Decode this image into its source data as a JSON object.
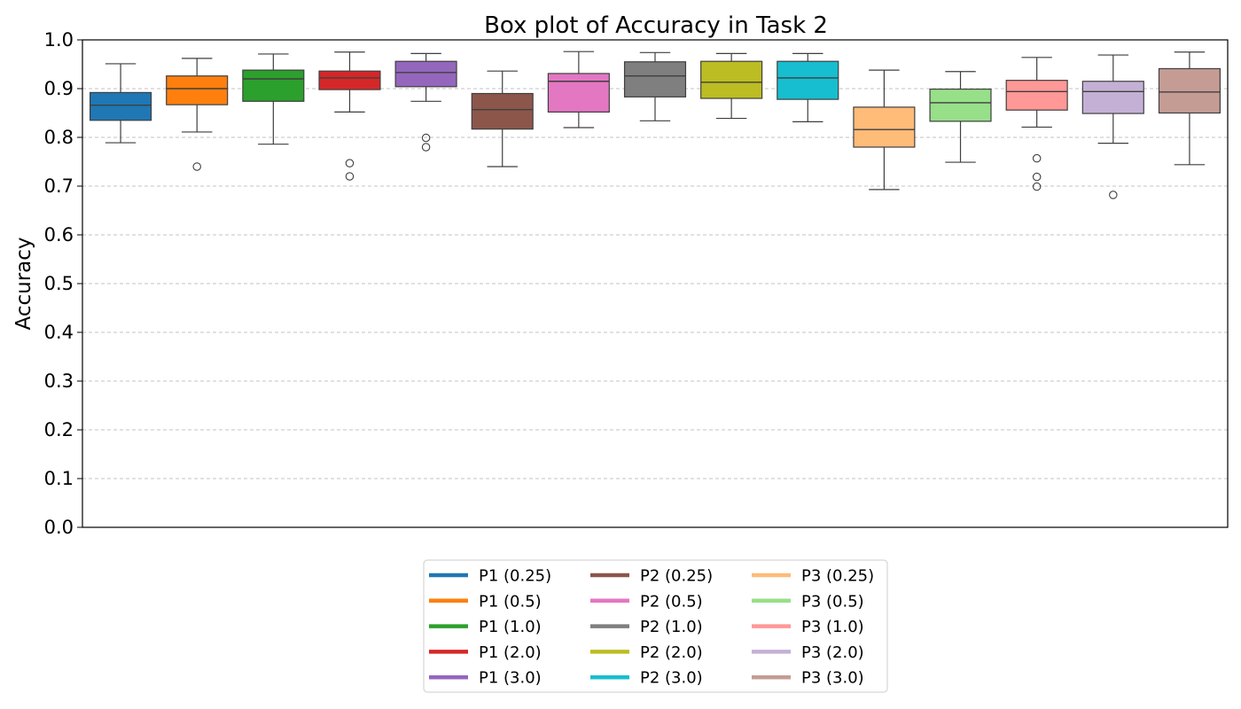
{
  "chart_data": {
    "type": "box",
    "title": "Box plot of Accuracy in Task 2",
    "xlabel": "",
    "ylabel": "Accuracy",
    "ylim": [
      0.0,
      1.0
    ],
    "yticks": [
      "0.0",
      "0.1",
      "0.2",
      "0.3",
      "0.4",
      "0.5",
      "0.6",
      "0.7",
      "0.8",
      "0.9",
      "1.0"
    ],
    "grid": "horizontal-dashed",
    "legend_placement": "bottom-center",
    "series": [
      {
        "name": "P1 (0.25)",
        "color": "#1f77b4",
        "whisker_low": 0.789,
        "q1": 0.835,
        "median": 0.866,
        "q3": 0.892,
        "whisker_high": 0.951,
        "outliers": []
      },
      {
        "name": "P1 (0.5)",
        "color": "#ff7f0e",
        "whisker_low": 0.811,
        "q1": 0.867,
        "median": 0.9,
        "q3": 0.926,
        "whisker_high": 0.962,
        "outliers": [
          0.74
        ]
      },
      {
        "name": "P1 (1.0)",
        "color": "#2ca02c",
        "whisker_low": 0.786,
        "q1": 0.874,
        "median": 0.92,
        "q3": 0.938,
        "whisker_high": 0.971,
        "outliers": []
      },
      {
        "name": "P1 (2.0)",
        "color": "#d62728",
        "whisker_low": 0.852,
        "q1": 0.898,
        "median": 0.922,
        "q3": 0.936,
        "whisker_high": 0.975,
        "outliers": [
          0.747,
          0.72
        ]
      },
      {
        "name": "P1 (3.0)",
        "color": "#9467bd",
        "whisker_low": 0.874,
        "q1": 0.904,
        "median": 0.933,
        "q3": 0.956,
        "whisker_high": 0.972,
        "outliers": [
          0.799,
          0.78
        ]
      },
      {
        "name": "P2 (0.25)",
        "color": "#8c564b",
        "whisker_low": 0.74,
        "q1": 0.817,
        "median": 0.857,
        "q3": 0.89,
        "whisker_high": 0.936,
        "outliers": []
      },
      {
        "name": "P2 (0.5)",
        "color": "#e377c2",
        "whisker_low": 0.82,
        "q1": 0.852,
        "median": 0.915,
        "q3": 0.931,
        "whisker_high": 0.976,
        "outliers": []
      },
      {
        "name": "P2 (1.0)",
        "color": "#7f7f7f",
        "whisker_low": 0.834,
        "q1": 0.883,
        "median": 0.926,
        "q3": 0.955,
        "whisker_high": 0.974,
        "outliers": []
      },
      {
        "name": "P2 (2.0)",
        "color": "#bcbd22",
        "whisker_low": 0.839,
        "q1": 0.88,
        "median": 0.913,
        "q3": 0.956,
        "whisker_high": 0.972,
        "outliers": []
      },
      {
        "name": "P2 (3.0)",
        "color": "#17becf",
        "whisker_low": 0.832,
        "q1": 0.878,
        "median": 0.922,
        "q3": 0.956,
        "whisker_high": 0.972,
        "outliers": []
      },
      {
        "name": "P3 (0.25)",
        "color": "#ffbb78",
        "whisker_low": 0.693,
        "q1": 0.78,
        "median": 0.816,
        "q3": 0.862,
        "whisker_high": 0.938,
        "outliers": []
      },
      {
        "name": "P3 (0.5)",
        "color": "#98df8a",
        "whisker_low": 0.749,
        "q1": 0.833,
        "median": 0.871,
        "q3": 0.899,
        "whisker_high": 0.935,
        "outliers": []
      },
      {
        "name": "P3 (1.0)",
        "color": "#ff9896",
        "whisker_low": 0.821,
        "q1": 0.856,
        "median": 0.894,
        "q3": 0.917,
        "whisker_high": 0.964,
        "outliers": [
          0.757,
          0.719,
          0.699
        ]
      },
      {
        "name": "P3 (2.0)",
        "color": "#c5b0d5",
        "whisker_low": 0.788,
        "q1": 0.849,
        "median": 0.894,
        "q3": 0.915,
        "whisker_high": 0.969,
        "outliers": [
          0.682
        ]
      },
      {
        "name": "P3 (3.0)",
        "color": "#c49c94",
        "whisker_low": 0.744,
        "q1": 0.85,
        "median": 0.893,
        "q3": 0.941,
        "whisker_high": 0.975,
        "outliers": []
      }
    ]
  }
}
